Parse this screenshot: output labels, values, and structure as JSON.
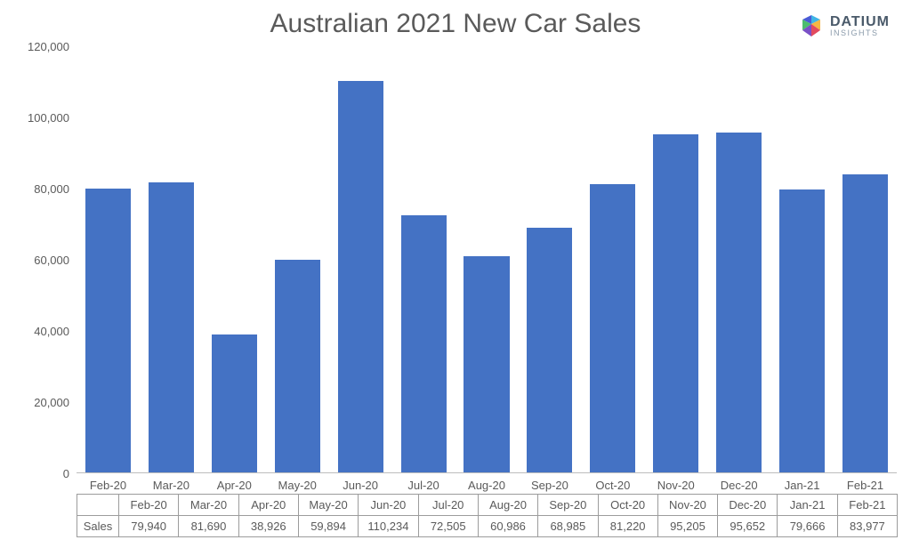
{
  "chart": {
    "type": "bar",
    "title": "Australian 2021 New Car Sales",
    "title_fontsize": 30,
    "title_color": "#5a5a5a",
    "background_color": "#ffffff",
    "bar_color": "#4472c4",
    "bar_width_ratio": 0.72,
    "axis_text_color": "#5a5a5a",
    "axis_fontsize": 13,
    "axis_line_color": "#bdbdbd",
    "table_border_color": "#9c9c9c",
    "ylim": [
      0,
      120000
    ],
    "ytick_step": 20000,
    "yticks": [
      "120,000",
      "100,000",
      "80,000",
      "60,000",
      "40,000",
      "20,000",
      "0"
    ],
    "categories": [
      "Feb-20",
      "Mar-20",
      "Apr-20",
      "May-20",
      "Jun-20",
      "Jul-20",
      "Aug-20",
      "Sep-20",
      "Oct-20",
      "Nov-20",
      "Dec-20",
      "Jan-21",
      "Feb-21"
    ],
    "values": [
      79940,
      81690,
      38926,
      59894,
      110234,
      72505,
      60986,
      68985,
      81220,
      95205,
      95652,
      79666,
      83977
    ],
    "values_display": [
      "79,940",
      "81,690",
      "38,926",
      "59,894",
      "110,234",
      "72,505",
      "60,986",
      "68,985",
      "81,220",
      "95,205",
      "95,652",
      "79,666",
      "83,977"
    ],
    "table_row_header": "Sales"
  },
  "logo": {
    "brand": "DATIUM",
    "subtitle": "INSIGHTS",
    "brand_color": "#4a5a6a",
    "subtitle_color": "#8a9aaa",
    "mark_colors": [
      "#40b4e5",
      "#4a5bd6",
      "#f7b543",
      "#4cbd6f",
      "#e24a5f",
      "#7a50c7"
    ]
  }
}
